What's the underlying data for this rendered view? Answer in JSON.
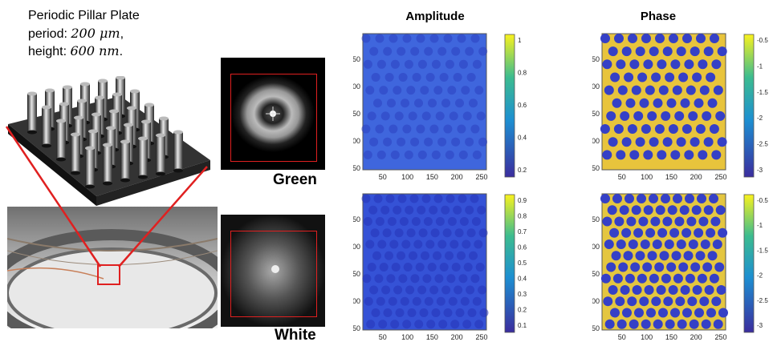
{
  "figure": {
    "plate_title": "Periodic Pillar Plate",
    "period_prefix": "period: ",
    "period_value": "200 μm",
    "period_suffix": ",",
    "height_prefix": "height: ",
    "height_value": "600 nm",
    "height_suffix": ".",
    "column_amplitude": "Amplitude",
    "column_phase": "Phase",
    "row_green": "Green",
    "row_white": "White"
  },
  "colors": {
    "red_annotation": "#e02020",
    "amp_base": "#3b5bd9",
    "phase_base": "#e9c43a",
    "phase_dot": "#3640c8"
  },
  "axes": {
    "ticks": [
      "50",
      "100",
      "150",
      "200",
      "250"
    ]
  },
  "colorbars": {
    "amp_green": [
      "1",
      "0.8",
      "0.6",
      "0.4",
      "0.2"
    ],
    "amp_white": [
      "0.9",
      "0.8",
      "0.7",
      "0.6",
      "0.5",
      "0.4",
      "0.3",
      "0.2",
      "0.1"
    ],
    "phase_green": [
      "-0.5",
      "-1",
      "-1.5",
      "-2",
      "-2.5",
      "-3"
    ],
    "phase_white": [
      "-0.5",
      "-1",
      "-1.5",
      "-2",
      "-2.5",
      "-3"
    ]
  }
}
